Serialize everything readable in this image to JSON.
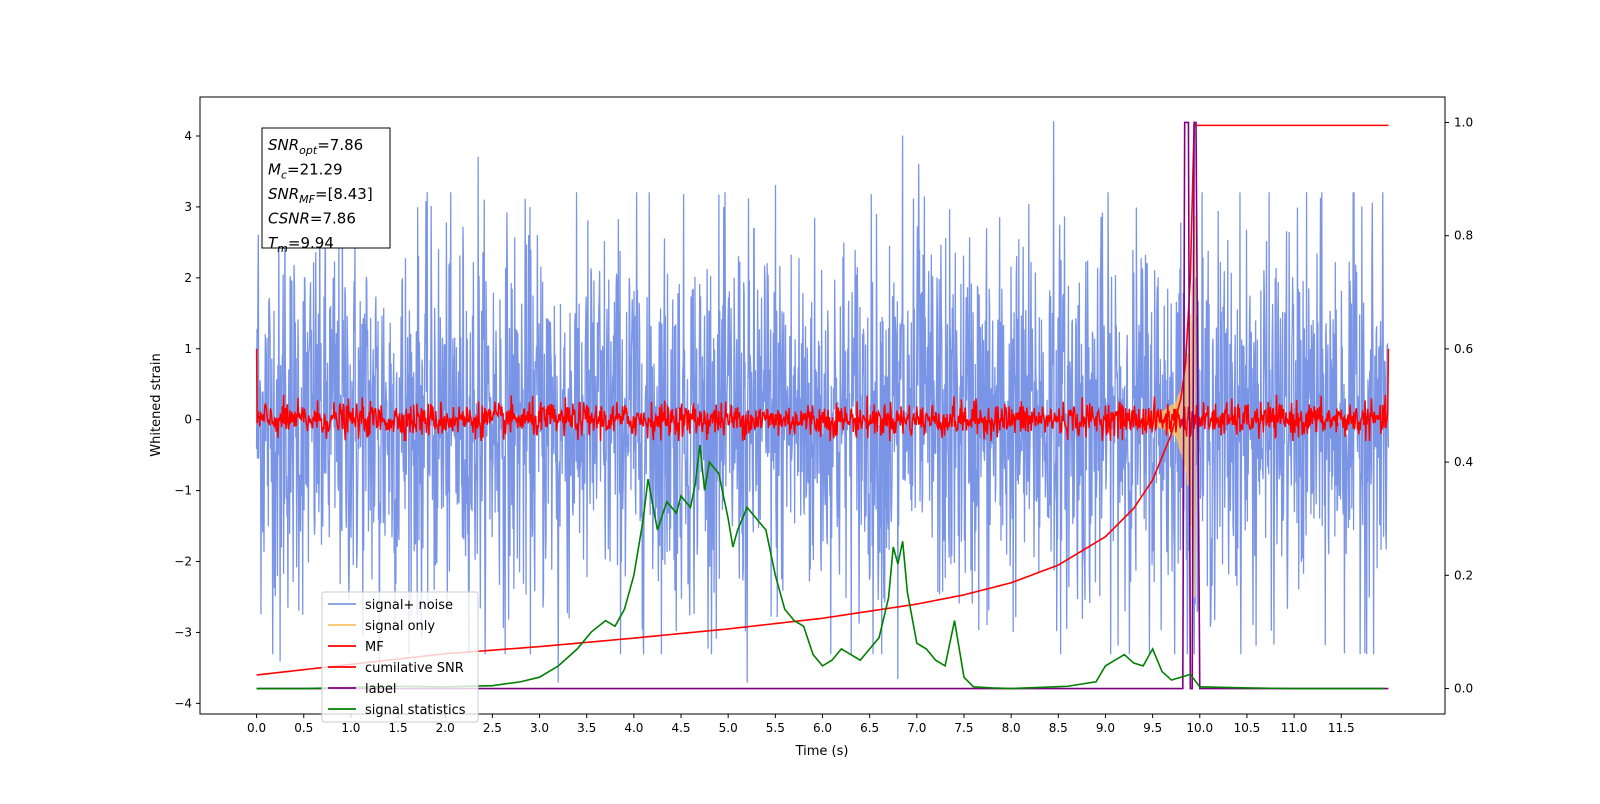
{
  "chart_data": {
    "type": "line",
    "title": "",
    "xlabel": "Time (s)",
    "ylabel": "Whitened strain",
    "xlim": [
      -0.6,
      12.6
    ],
    "ylim": [
      -4.15,
      4.55
    ],
    "y2lim": [
      -0.045,
      1.045
    ],
    "x_ticks": [
      "0.0",
      "0.5",
      "1.0",
      "1.5",
      "2.0",
      "2.5",
      "3.0",
      "3.5",
      "4.0",
      "4.5",
      "5.0",
      "5.5",
      "6.0",
      "6.5",
      "7.0",
      "7.5",
      "8.0",
      "8.5",
      "9.0",
      "9.5",
      "10.0",
      "10.5",
      "11.0",
      "11.5"
    ],
    "y_ticks": [
      "4",
      "3",
      "2",
      "1",
      "0",
      "−1",
      "−2",
      "−3",
      "−4"
    ],
    "y2_ticks": [
      "1.0",
      "0.8",
      "0.6",
      "0.4",
      "0.2",
      "0.0"
    ],
    "info_box": [
      {
        "var": "SNR",
        "sub": "opt",
        "value": "=7.86"
      },
      {
        "var": "M",
        "sub": "c",
        "value": "=21.29"
      },
      {
        "var": "SNR",
        "sub": "MF",
        "value": "=[8.43]"
      },
      {
        "var": "CSNR",
        "sub": "",
        "value": "=7.86"
      },
      {
        "var": "T",
        "sub": "m",
        "value": "=9.94"
      }
    ],
    "legend": {
      "position": "lower-left",
      "entries": [
        {
          "label": "signal+ noise",
          "color": "#7b95e6"
        },
        {
          "label": "signal only",
          "color": "#f5c36a"
        },
        {
          "label": "MF",
          "color": "#ff0000"
        },
        {
          "label": "cumilative SNR",
          "color": "#ff0000"
        },
        {
          "label": "label",
          "color": "#800080"
        },
        {
          "label": "signal statistics",
          "color": "#008000"
        }
      ]
    },
    "series": [
      {
        "name": "signal+ noise",
        "axis": "left",
        "color": "#7b95e6",
        "description_kind": "noise",
        "x_range": [
          0.0,
          12.0
        ],
        "center": 0.0,
        "amplitude": 1.4,
        "peaks": [
          [
            0.02,
            2.6
          ],
          [
            0.3,
            3.0
          ],
          [
            1.3,
            3.4
          ],
          [
            2.35,
            3.7
          ],
          [
            5.5,
            3.3
          ],
          [
            6.85,
            4.0
          ],
          [
            7.02,
            3.6
          ],
          [
            8.45,
            4.2
          ],
          [
            9.95,
            3.4
          ],
          [
            11.72,
            3.0
          ],
          [
            0.25,
            -3.4
          ],
          [
            1.3,
            -3.55
          ],
          [
            5.2,
            -3.7
          ],
          [
            6.8,
            -3.65
          ],
          [
            3.2,
            -3.7
          ],
          [
            9.95,
            -2.6
          ]
        ]
      },
      {
        "name": "signal only",
        "axis": "left",
        "color": "#f5c36a",
        "description_kind": "chirp",
        "x_range": [
          9.4,
          9.95
        ],
        "envelope": [
          [
            9.4,
            0.05
          ],
          [
            9.6,
            0.12
          ],
          [
            9.75,
            0.25
          ],
          [
            9.85,
            0.7
          ],
          [
            9.9,
            1.3
          ],
          [
            9.95,
            2.9
          ]
        ]
      },
      {
        "name": "MF",
        "axis": "left",
        "color": "#ff0000",
        "description_kind": "noise",
        "x_range": [
          0.0,
          12.0
        ],
        "center": 0.0,
        "amplitude": 0.12,
        "endpoints": [
          [
            0.0,
            1.0
          ],
          [
            12.0,
            1.0
          ]
        ]
      },
      {
        "name": "cumilative SNR",
        "axis": "left",
        "color": "#ff0000",
        "x": [
          0.0,
          1.0,
          2.0,
          3.0,
          4.0,
          5.0,
          6.0,
          7.0,
          7.5,
          8.0,
          8.5,
          9.0,
          9.3,
          9.5,
          9.7,
          9.8,
          9.85,
          9.9,
          9.94,
          10.0,
          12.0
        ],
        "y": [
          -3.6,
          -3.45,
          -3.3,
          -3.2,
          -3.08,
          -2.95,
          -2.8,
          -2.6,
          -2.47,
          -2.3,
          -2.05,
          -1.65,
          -1.25,
          -0.85,
          -0.2,
          0.3,
          0.8,
          2.0,
          4.15,
          4.15,
          4.15
        ]
      },
      {
        "name": "label",
        "axis": "right",
        "color": "#800080",
        "x": [
          0.0,
          9.82,
          9.84,
          9.88,
          9.9,
          9.92,
          9.94,
          9.96,
          10.0,
          12.0
        ],
        "y": [
          0,
          0,
          1,
          1,
          0,
          0,
          1,
          1,
          0,
          0
        ]
      },
      {
        "name": "signal statistics",
        "axis": "right",
        "color": "#008000",
        "x": [
          0.0,
          0.5,
          1.0,
          1.5,
          2.0,
          2.5,
          2.8,
          3.0,
          3.2,
          3.4,
          3.55,
          3.7,
          3.8,
          3.9,
          4.0,
          4.1,
          4.15,
          4.25,
          4.35,
          4.45,
          4.5,
          4.6,
          4.65,
          4.7,
          4.75,
          4.8,
          4.85,
          4.9,
          5.0,
          5.05,
          5.1,
          5.2,
          5.3,
          5.4,
          5.5,
          5.6,
          5.7,
          5.8,
          5.9,
          6.0,
          6.1,
          6.2,
          6.3,
          6.4,
          6.5,
          6.6,
          6.7,
          6.75,
          6.8,
          6.85,
          6.9,
          7.0,
          7.1,
          7.2,
          7.3,
          7.4,
          7.5,
          7.6,
          7.8,
          8.0,
          8.3,
          8.6,
          8.9,
          9.0,
          9.1,
          9.2,
          9.3,
          9.4,
          9.5,
          9.6,
          9.7,
          9.8,
          9.9,
          10.0,
          10.5,
          11.0,
          11.5,
          11.95
        ],
        "y": [
          0.0,
          0.0,
          0.002,
          0.004,
          0.003,
          0.005,
          0.012,
          0.02,
          0.04,
          0.07,
          0.1,
          0.12,
          0.11,
          0.14,
          0.2,
          0.3,
          0.37,
          0.28,
          0.33,
          0.31,
          0.34,
          0.32,
          0.36,
          0.43,
          0.35,
          0.4,
          0.39,
          0.38,
          0.3,
          0.25,
          0.28,
          0.32,
          0.3,
          0.28,
          0.2,
          0.14,
          0.12,
          0.11,
          0.06,
          0.04,
          0.05,
          0.07,
          0.06,
          0.05,
          0.07,
          0.09,
          0.16,
          0.25,
          0.22,
          0.26,
          0.17,
          0.08,
          0.07,
          0.05,
          0.04,
          0.12,
          0.02,
          0.003,
          0.001,
          0.0,
          0.002,
          0.004,
          0.012,
          0.04,
          0.05,
          0.06,
          0.045,
          0.04,
          0.07,
          0.03,
          0.015,
          0.02,
          0.025,
          0.003,
          0.001,
          0.0,
          0.0,
          0.0
        ]
      }
    ]
  }
}
